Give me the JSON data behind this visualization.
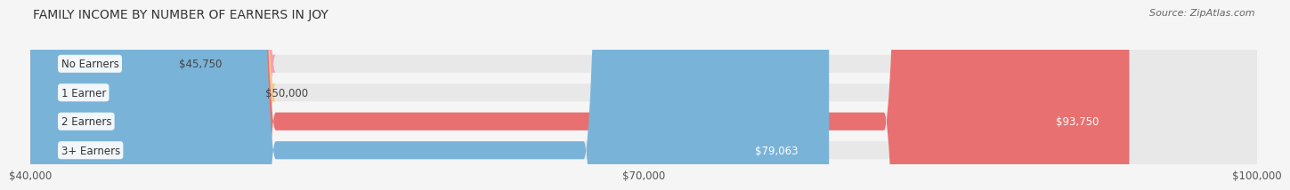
{
  "title": "FAMILY INCOME BY NUMBER OF EARNERS IN JOY",
  "source": "Source: ZipAtlas.com",
  "categories": [
    "No Earners",
    "1 Earner",
    "2 Earners",
    "3+ Earners"
  ],
  "values": [
    45750,
    50000,
    93750,
    79063
  ],
  "value_labels": [
    "$45,750",
    "$50,000",
    "$93,750",
    "$79,063"
  ],
  "bar_colors": [
    "#f4a0b0",
    "#f5c990",
    "#e87070",
    "#7ab3d8"
  ],
  "bar_bg_color": "#e8e8e8",
  "xmin": 40000,
  "xmax": 100000,
  "xticks": [
    40000,
    70000,
    100000
  ],
  "xtick_labels": [
    "$40,000",
    "$70,000",
    "$100,000"
  ],
  "title_fontsize": 10,
  "tick_fontsize": 8.5,
  "bar_label_fontsize": 8.5,
  "value_label_fontsize": 8.5,
  "background_color": "#f5f5f5",
  "value_inside": [
    false,
    false,
    true,
    true
  ]
}
